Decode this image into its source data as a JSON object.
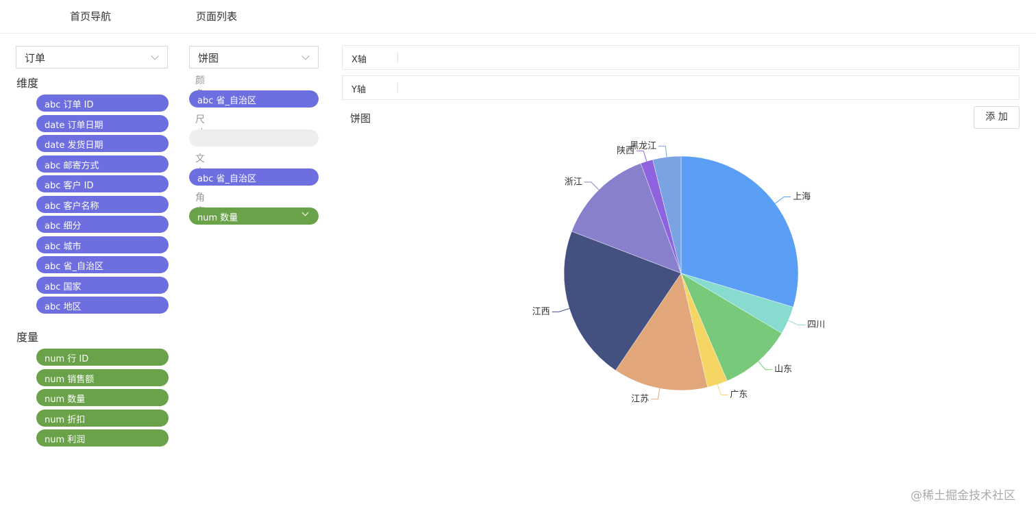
{
  "nav": [
    "首页导航",
    "页面列表"
  ],
  "left": {
    "dataset": "订单",
    "dimensions_title": "维度",
    "dimensions": [
      "abc 订单 ID",
      "date 订单日期",
      "date 发货日期",
      "abc 邮寄方式",
      "abc 客户 ID",
      "abc 客户名称",
      "abc 细分",
      "abc 城市",
      "abc 省_自治区",
      "abc 国家",
      "abc 地区"
    ],
    "measures_title": "度量",
    "measures": [
      "num 行 ID",
      "num 销售额",
      "num 数量",
      "num 折扣",
      "num 利润"
    ]
  },
  "middle": {
    "chart_type": "饼图",
    "fields": [
      {
        "label": "颜色",
        "value": "abc 省_自治区"
      },
      {
        "label": "尺寸"
      },
      {
        "label": "文本",
        "value": "abc 省_自治区"
      },
      {
        "label": "角度",
        "value": "num 数量"
      }
    ]
  },
  "panel": {
    "x_label": "X轴",
    "y_label": "Y轴",
    "title": "饼图",
    "add_button": "添 加"
  },
  "watermark": "@稀土掘金技术社区",
  "chart_data": {
    "type": "pie",
    "categories": [
      "上海",
      "四川",
      "山东",
      "广东",
      "江苏",
      "江西",
      "浙江",
      "陕西",
      "黑龙江"
    ],
    "values": [
      29.7,
      3.9,
      10,
      2.8,
      13.1,
      21.4,
      13.6,
      1.7,
      3.9
    ],
    "colors": [
      "#5b9ef5",
      "#87dbcf",
      "#79c97a",
      "#f5d563",
      "#e1a77a",
      "#435080",
      "#8880cd",
      "#8f62e0",
      "#7aa3e3"
    ]
  }
}
